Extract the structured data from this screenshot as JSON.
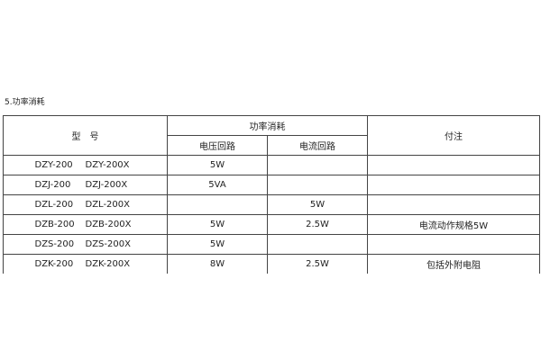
{
  "section_title": "5.功率消耗",
  "headers": {
    "model": "型　号",
    "power": "功率消耗",
    "voltage": "电压回路",
    "current": "电流回路",
    "note": "付注"
  },
  "rows": [
    {
      "model_a": "DZY-200",
      "model_b": "DZY-200X",
      "voltage": "5W",
      "current": "",
      "note": ""
    },
    {
      "model_a": "DZJ-200",
      "model_b": "DZJ-200X",
      "voltage": "5VA",
      "current": "",
      "note": ""
    },
    {
      "model_a": "DZL-200",
      "model_b": "DZL-200X",
      "voltage": "",
      "current": "5W",
      "note": ""
    },
    {
      "model_a": "DZB-200",
      "model_b": "DZB-200X",
      "voltage": "5W",
      "current": "2.5W",
      "note": "电流动作规格5W"
    },
    {
      "model_a": "DZS-200",
      "model_b": "DZS-200X",
      "voltage": "5W",
      "current": "",
      "note": ""
    },
    {
      "model_a": "DZK-200",
      "model_b": "DZK-200X",
      "voltage": "8W",
      "current": "2.5W",
      "note": "包括外附电阻"
    }
  ]
}
